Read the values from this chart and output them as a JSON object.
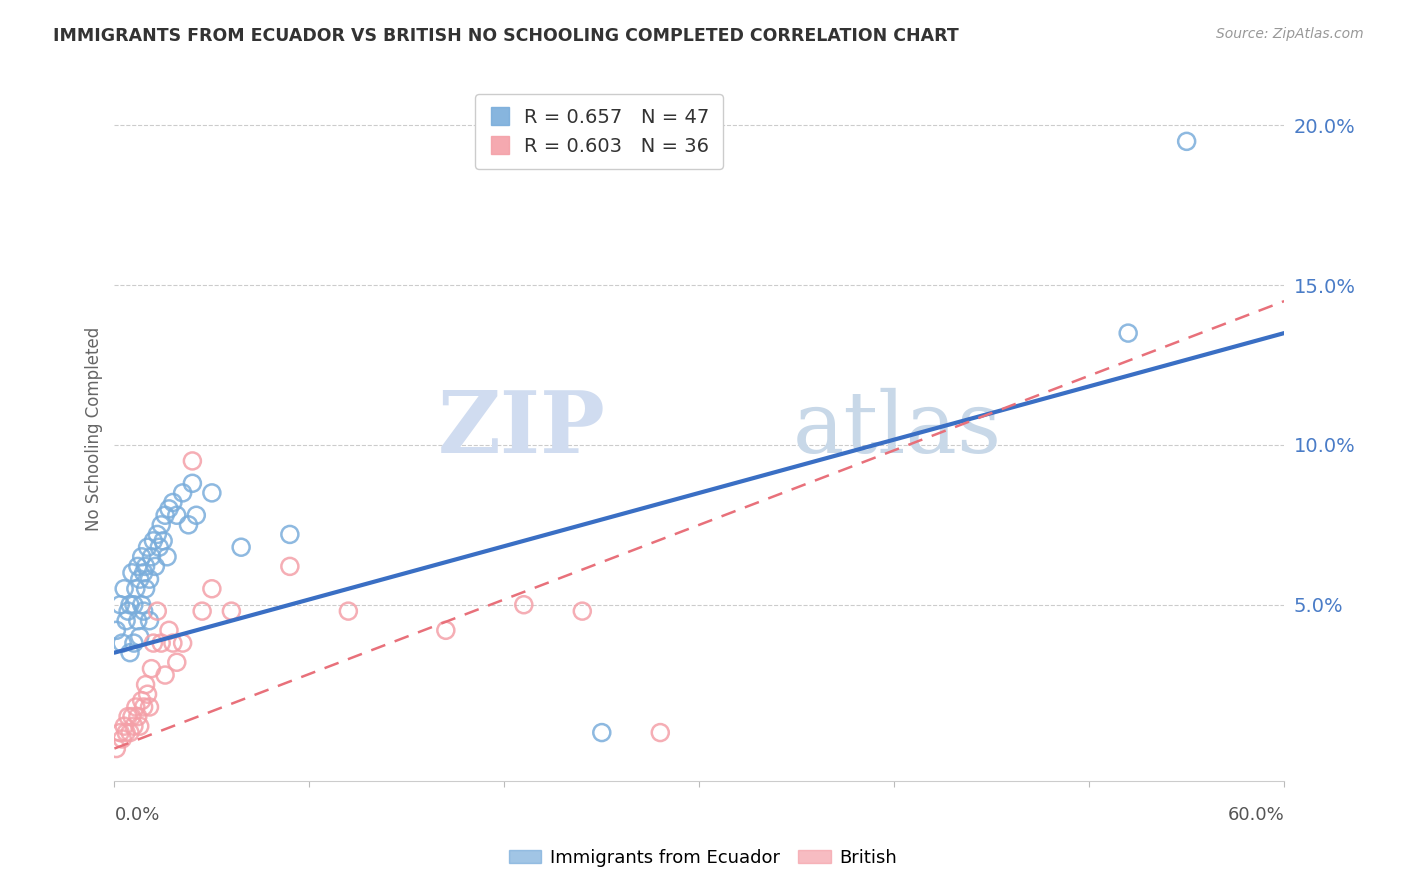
{
  "title": "IMMIGRANTS FROM ECUADOR VS BRITISH NO SCHOOLING COMPLETED CORRELATION CHART",
  "source": "Source: ZipAtlas.com",
  "ylabel": "No Schooling Completed",
  "legend_ecuador": "Immigrants from Ecuador",
  "legend_british": "British",
  "ecuador_R": "R = 0.657",
  "ecuador_N": "N = 47",
  "british_R": "R = 0.603",
  "british_N": "N = 36",
  "ecuador_color": "#7AADDB",
  "british_color": "#F4A0A8",
  "ecuador_line_color": "#3A6FC4",
  "british_line_color": "#E8707A",
  "ytick_labels": [
    "5.0%",
    "10.0%",
    "15.0%",
    "20.0%"
  ],
  "ytick_values": [
    0.05,
    0.1,
    0.15,
    0.2
  ],
  "xlim": [
    0.0,
    0.6
  ],
  "ylim": [
    -0.005,
    0.215
  ],
  "watermark_zip": "ZIP",
  "watermark_atlas": "atlas",
  "ecuador_points_x": [
    0.001,
    0.003,
    0.004,
    0.005,
    0.006,
    0.007,
    0.008,
    0.008,
    0.009,
    0.01,
    0.01,
    0.011,
    0.012,
    0.012,
    0.013,
    0.013,
    0.014,
    0.014,
    0.015,
    0.015,
    0.016,
    0.016,
    0.017,
    0.018,
    0.018,
    0.019,
    0.02,
    0.021,
    0.022,
    0.023,
    0.024,
    0.025,
    0.026,
    0.027,
    0.028,
    0.03,
    0.032,
    0.035,
    0.038,
    0.04,
    0.042,
    0.05,
    0.065,
    0.09,
    0.25,
    0.52,
    0.55
  ],
  "ecuador_points_y": [
    0.042,
    0.05,
    0.038,
    0.055,
    0.045,
    0.048,
    0.05,
    0.035,
    0.06,
    0.05,
    0.038,
    0.055,
    0.062,
    0.045,
    0.058,
    0.04,
    0.065,
    0.05,
    0.06,
    0.048,
    0.062,
    0.055,
    0.068,
    0.058,
    0.045,
    0.065,
    0.07,
    0.062,
    0.072,
    0.068,
    0.075,
    0.07,
    0.078,
    0.065,
    0.08,
    0.082,
    0.078,
    0.085,
    0.075,
    0.088,
    0.078,
    0.085,
    0.068,
    0.072,
    0.01,
    0.135,
    0.195
  ],
  "british_points_x": [
    0.001,
    0.003,
    0.004,
    0.005,
    0.006,
    0.007,
    0.008,
    0.009,
    0.01,
    0.011,
    0.012,
    0.013,
    0.014,
    0.015,
    0.016,
    0.017,
    0.018,
    0.019,
    0.02,
    0.022,
    0.024,
    0.026,
    0.028,
    0.03,
    0.032,
    0.035,
    0.04,
    0.045,
    0.05,
    0.06,
    0.09,
    0.12,
    0.17,
    0.21,
    0.24,
    0.28
  ],
  "british_points_y": [
    0.005,
    0.01,
    0.008,
    0.012,
    0.01,
    0.015,
    0.01,
    0.015,
    0.012,
    0.018,
    0.015,
    0.012,
    0.02,
    0.018,
    0.025,
    0.022,
    0.018,
    0.03,
    0.038,
    0.048,
    0.038,
    0.028,
    0.042,
    0.038,
    0.032,
    0.038,
    0.095,
    0.048,
    0.055,
    0.048,
    0.062,
    0.048,
    0.042,
    0.05,
    0.048,
    0.01
  ],
  "ecuador_line_x0": 0.0,
  "ecuador_line_y0": 0.035,
  "ecuador_line_x1": 0.6,
  "ecuador_line_y1": 0.135,
  "british_line_x0": 0.0,
  "british_line_y0": 0.005,
  "british_line_x1": 0.6,
  "british_line_y1": 0.145
}
